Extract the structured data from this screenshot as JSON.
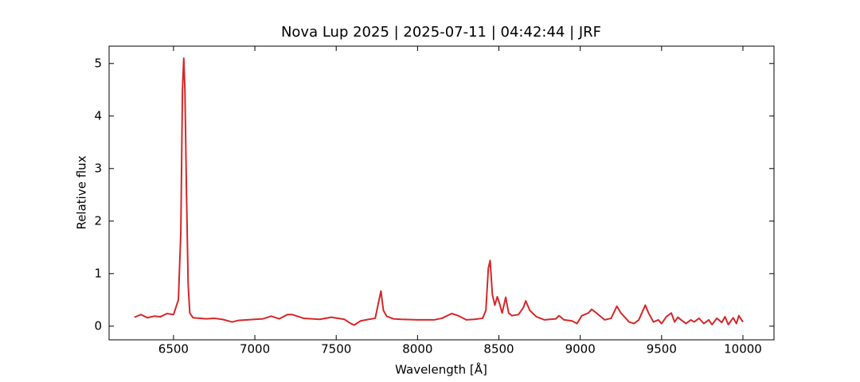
{
  "chart_data": {
    "type": "line",
    "title": "Nova Lup 2025 | 2025-07-11 | 04:42:44 | JRF",
    "xlabel": "Wavelength [Å]",
    "ylabel": "Relative flux",
    "xlim": [
      6104,
      10191
    ],
    "ylim": [
      -0.26,
      5.33
    ],
    "xticks": [
      6500,
      7000,
      7500,
      8000,
      8500,
      9000,
      9500,
      10000
    ],
    "yticks": [
      0,
      1,
      2,
      3,
      4,
      5
    ],
    "grid": false,
    "series": [
      {
        "color": "#d62728",
        "x": [
          6260,
          6300,
          6340,
          6380,
          6420,
          6460,
          6500,
          6530,
          6545,
          6555,
          6563,
          6570,
          6580,
          6590,
          6600,
          6620,
          6700,
          6750,
          6800,
          6860,
          6900,
          7000,
          7050,
          7100,
          7150,
          7200,
          7230,
          7300,
          7400,
          7470,
          7550,
          7590,
          7610,
          7650,
          7700,
          7740,
          7760,
          7775,
          7790,
          7810,
          7850,
          7900,
          8000,
          8100,
          8150,
          8210,
          8250,
          8300,
          8350,
          8400,
          8420,
          8435,
          8446,
          8460,
          8475,
          8490,
          8505,
          8520,
          8542,
          8560,
          8580,
          8620,
          8650,
          8665,
          8690,
          8730,
          8780,
          8850,
          8870,
          8900,
          8950,
          8980,
          9010,
          9050,
          9070,
          9100,
          9150,
          9190,
          9225,
          9250,
          9280,
          9300,
          9330,
          9360,
          9400,
          9420,
          9450,
          9480,
          9500,
          9530,
          9560,
          9580,
          9600,
          9620,
          9650,
          9680,
          9700,
          9730,
          9760,
          9790,
          9810,
          9840,
          9870,
          9890,
          9910,
          9940,
          9960,
          9975,
          10000
        ],
        "values": [
          0.17,
          0.22,
          0.16,
          0.19,
          0.18,
          0.24,
          0.22,
          0.5,
          1.8,
          4.5,
          5.1,
          4.5,
          2.5,
          0.8,
          0.25,
          0.16,
          0.14,
          0.15,
          0.13,
          0.08,
          0.11,
          0.13,
          0.14,
          0.19,
          0.14,
          0.22,
          0.22,
          0.15,
          0.13,
          0.17,
          0.13,
          0.05,
          0.02,
          0.1,
          0.13,
          0.15,
          0.45,
          0.67,
          0.3,
          0.19,
          0.14,
          0.13,
          0.12,
          0.12,
          0.15,
          0.24,
          0.2,
          0.12,
          0.13,
          0.15,
          0.3,
          1.1,
          1.25,
          0.6,
          0.4,
          0.56,
          0.42,
          0.25,
          0.55,
          0.25,
          0.2,
          0.22,
          0.35,
          0.48,
          0.3,
          0.18,
          0.12,
          0.14,
          0.2,
          0.12,
          0.1,
          0.05,
          0.2,
          0.25,
          0.32,
          0.25,
          0.12,
          0.15,
          0.38,
          0.25,
          0.15,
          0.08,
          0.05,
          0.12,
          0.4,
          0.25,
          0.08,
          0.12,
          0.05,
          0.18,
          0.25,
          0.08,
          0.17,
          0.12,
          0.05,
          0.12,
          0.08,
          0.15,
          0.05,
          0.12,
          0.03,
          0.15,
          0.07,
          0.18,
          0.03,
          0.16,
          0.05,
          0.2,
          0.08
        ]
      }
    ]
  }
}
